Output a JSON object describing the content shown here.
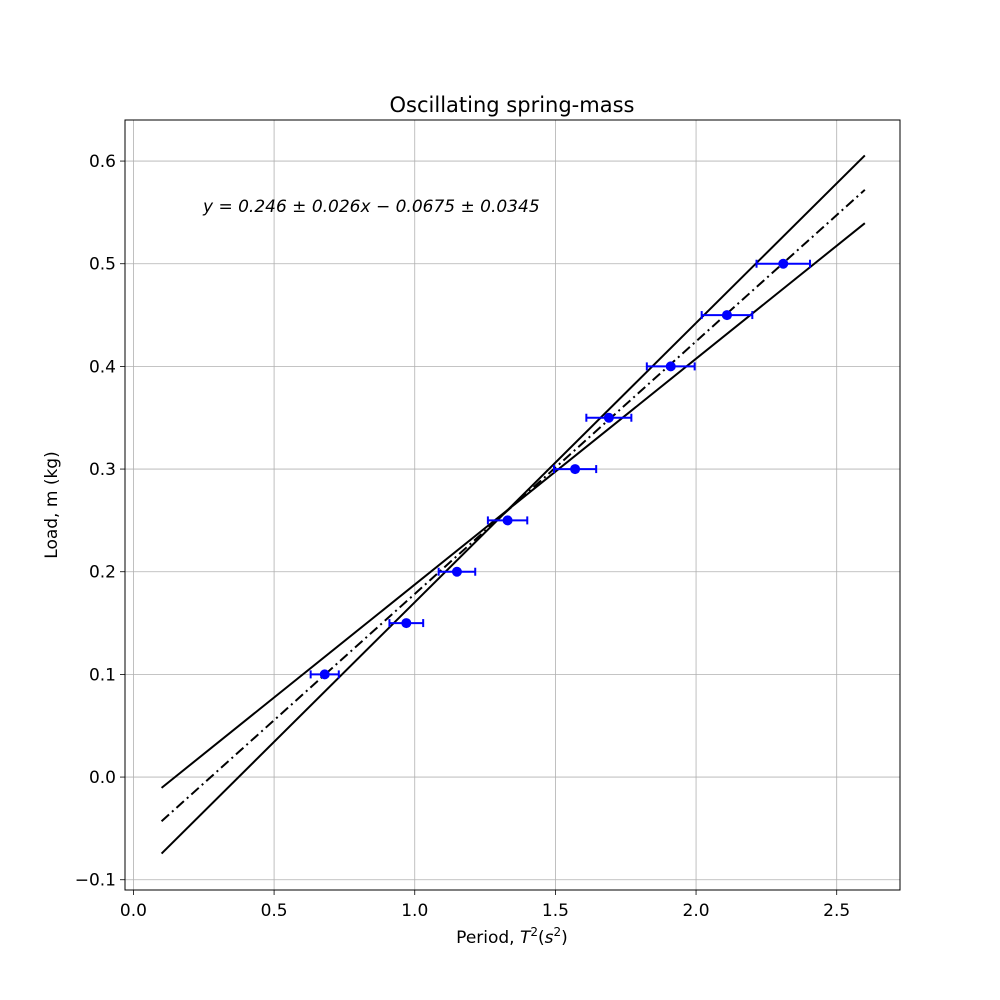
{
  "chart_data": {
    "type": "scatter",
    "title": "Oscillating spring-mass",
    "xlabel_prefix": "Period, ",
    "xlabel_symbol": "T",
    "xlabel_exp": "2",
    "xlabel_unit_open": "(",
    "xlabel_unit_symbol": "s",
    "xlabel_unit_exp": "2",
    "xlabel_unit_close": ")",
    "ylabel": "Load, m (kg)",
    "annotation": "y = 0.246 ± 0.026x − 0.0675 ± 0.0345",
    "xlim": [
      -0.03,
      2.725
    ],
    "ylim": [
      -0.11,
      0.64
    ],
    "grid": true,
    "x_ticks": [
      0.0,
      0.5,
      1.0,
      1.5,
      2.0,
      2.5
    ],
    "x_tick_labels": [
      "0.0",
      "0.5",
      "1.0",
      "1.5",
      "2.0",
      "2.5"
    ],
    "y_ticks": [
      -0.1,
      0.0,
      0.1,
      0.2,
      0.3,
      0.4,
      0.5,
      0.6
    ],
    "y_tick_labels": [
      "−0.1",
      "0.0",
      "0.1",
      "0.2",
      "0.3",
      "0.4",
      "0.5",
      "0.6"
    ],
    "points": {
      "color": "#0000ff",
      "x": [
        0.68,
        0.97,
        1.15,
        1.33,
        1.57,
        1.69,
        1.91,
        2.11,
        2.31
      ],
      "y": [
        0.1,
        0.15,
        0.2,
        0.25,
        0.3,
        0.35,
        0.4,
        0.45,
        0.5
      ],
      "xerr": [
        0.05,
        0.06,
        0.065,
        0.07,
        0.075,
        0.08,
        0.085,
        0.09,
        0.095
      ]
    },
    "lines": [
      {
        "style": "dashdot",
        "color": "#000000",
        "x": [
          0.1,
          2.6
        ],
        "y": [
          -0.043,
          0.572
        ]
      },
      {
        "style": "solid",
        "color": "#000000",
        "x": [
          0.1,
          2.6
        ],
        "y": [
          -0.0745,
          0.6055
        ]
      },
      {
        "style": "solid",
        "color": "#000000",
        "x": [
          0.1,
          2.6
        ],
        "y": [
          -0.0105,
          0.5395
        ]
      }
    ]
  }
}
